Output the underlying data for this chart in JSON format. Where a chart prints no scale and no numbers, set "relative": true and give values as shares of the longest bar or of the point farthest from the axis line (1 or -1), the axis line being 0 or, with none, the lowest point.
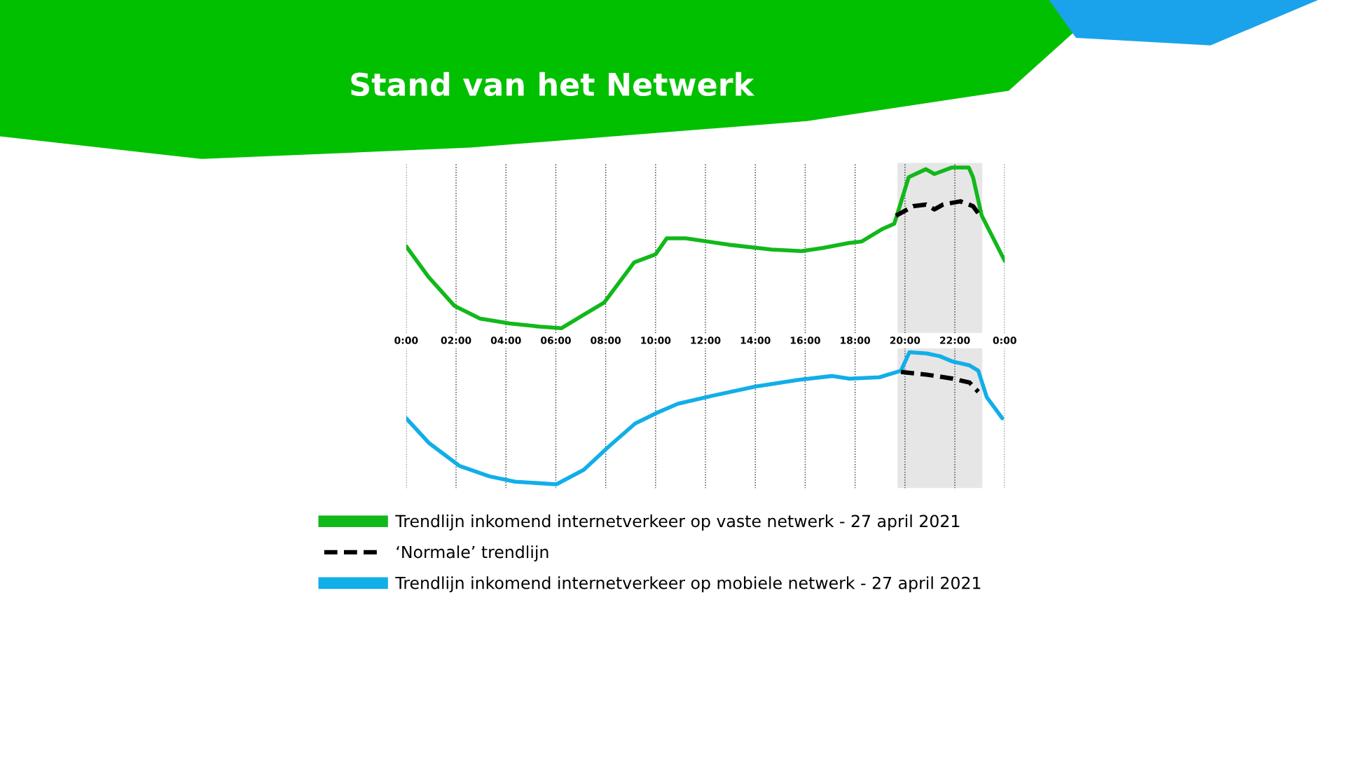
{
  "chart_data": [
    {
      "type": "line",
      "title": "Stand van het Netwerk",
      "relative": true,
      "xlim": [
        0,
        24
      ],
      "xticks": [
        {
          "value": 0,
          "label": "0:00"
        },
        {
          "value": 2,
          "label": "02:00"
        },
        {
          "value": 4,
          "label": "04:00"
        },
        {
          "value": 6,
          "label": "06:00"
        },
        {
          "value": 8,
          "label": "08:00"
        },
        {
          "value": 10,
          "label": "10:00"
        },
        {
          "value": 12,
          "label": "12:00"
        },
        {
          "value": 14,
          "label": "14:00"
        },
        {
          "value": 16,
          "label": "16:00"
        },
        {
          "value": 18,
          "label": "18:00"
        },
        {
          "value": 20,
          "label": "20:00"
        },
        {
          "value": 22,
          "label": "22:00"
        },
        {
          "value": 24,
          "label": "0:00"
        }
      ],
      "grid": "x",
      "legend": "bottom",
      "tick_labels": "x",
      "bands": [
        {
          "axis": "x",
          "from": 19.7,
          "to": 23.1,
          "color": "#e6e6e6"
        }
      ],
      "series": [
        {
          "name": "Trendlijn inkomend internetverkeer op vaste netwerk - 27 april 2021",
          "color": "#11b81a",
          "line_style": "solid",
          "x": [
            0,
            0.89,
            1.93,
            2.96,
            4.16,
            5.36,
            6.22,
            7.08,
            7.94,
            9.14,
            10.0,
            10.45,
            11.21,
            12.93,
            14.65,
            15.85,
            16.71,
            17.74,
            18.26,
            19.12,
            19.57,
            20.15,
            20.84,
            21.18,
            21.87,
            22.56,
            22.73,
            23.08,
            24
          ],
          "values": [
            0.51,
            0.32,
            0.14,
            0.06,
            0.03,
            0.01,
            0,
            0.08,
            0.16,
            0.41,
            0.46,
            0.56,
            0.56,
            0.52,
            0.49,
            0.48,
            0.5,
            0.53,
            0.54,
            0.62,
            0.65,
            0.94,
            0.99,
            0.96,
            1.0,
            1.0,
            0.94,
            0.7,
            0.42
          ]
        },
        {
          "name": "‘Normale’ trendlijn",
          "color": "#000000",
          "line_style": "dashed",
          "x": [
            19.64,
            20.33,
            20.84,
            21.18,
            21.53,
            22.22,
            22.73,
            23.01
          ],
          "values": [
            0.7,
            0.76,
            0.77,
            0.74,
            0.77,
            0.79,
            0.76,
            0.7
          ]
        }
      ]
    },
    {
      "type": "line",
      "relative": true,
      "xlim": [
        0,
        24
      ],
      "grid": "x",
      "tick_labels": false,
      "xticks": [
        0,
        2,
        4,
        6,
        8,
        10,
        12,
        14,
        16,
        18,
        20,
        22,
        24
      ],
      "bands": [
        {
          "axis": "x",
          "from": 19.7,
          "to": 23.1,
          "color": "#e6e6e6"
        }
      ],
      "series": [
        {
          "name": "Trendlijn inkomend internetverkeer op mobiele netwerk - 27 april 2021",
          "color": "#12aee8",
          "line_style": "solid",
          "x": [
            0,
            0.93,
            2.13,
            3.34,
            4.37,
            6.02,
            7.12,
            8.15,
            9.18,
            10.04,
            10.9,
            12.28,
            14.0,
            15.72,
            17.09,
            17.78,
            18.98,
            19.84,
            20.18,
            20.87,
            21.39,
            21.9,
            22.59,
            22.94,
            23.28,
            23.9
          ],
          "values": [
            0.5,
            0.31,
            0.14,
            0.06,
            0.02,
            0,
            0.11,
            0.29,
            0.46,
            0.54,
            0.61,
            0.67,
            0.74,
            0.79,
            0.82,
            0.8,
            0.81,
            0.86,
            1.0,
            0.99,
            0.97,
            0.93,
            0.9,
            0.86,
            0.66,
            0.5
          ]
        },
        {
          "name": "‘Normale’ trendlijn",
          "color": "#000000",
          "line_style": "dashed",
          "x": [
            19.84,
            20.87,
            21.9,
            22.59,
            22.94
          ],
          "values": [
            0.85,
            0.83,
            0.8,
            0.77,
            0.7
          ]
        }
      ]
    }
  ]
}
